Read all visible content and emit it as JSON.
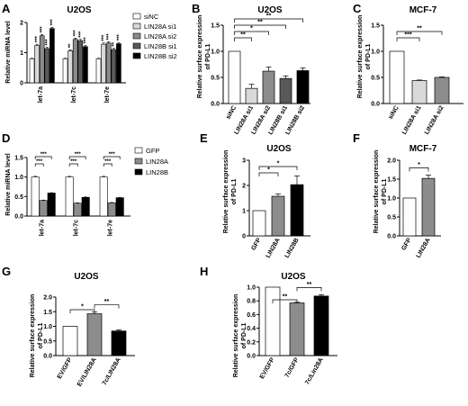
{
  "figure": {
    "panels": [
      {
        "letter": "A",
        "title": "U2OS",
        "ylabel": "Relative miRNA level",
        "legend": [
          {
            "label": "siNC",
            "color": "#ffffff"
          },
          {
            "label": "LIN28A si1",
            "color": "#d9d9d9"
          },
          {
            "label": "LIN28A si2",
            "color": "#8c8c8c"
          },
          {
            "label": "LIN28B si1",
            "color": "#595959"
          },
          {
            "label": "LIN28B si2",
            "color": "#000000"
          }
        ]
      },
      {
        "letter": "B",
        "title": "U2OS",
        "ylabel": "Relative surface expression",
        "ylabel2": "of PD-L1"
      },
      {
        "letter": "C",
        "title": "MCF-7",
        "ylabel": "Relative surface expression",
        "ylabel2": "of PD-L1"
      },
      {
        "letter": "D",
        "title": "",
        "ylabel": "Relative miRNA level",
        "legend": [
          {
            "label": "GFP",
            "color": "#ffffff"
          },
          {
            "label": "LIN28A",
            "color": "#8c8c8c"
          },
          {
            "label": "LIN28B",
            "color": "#000000"
          }
        ]
      },
      {
        "letter": "E",
        "title": "U2OS",
        "ylabel": "Relative surface expression",
        "ylabel2": "of PD-L1"
      },
      {
        "letter": "F",
        "title": "MCF-7",
        "ylabel": "Relative surface expression",
        "ylabel2": "of PD-L1"
      },
      {
        "letter": "G",
        "title": "U2OS",
        "ylabel": "Relative surface expression",
        "ylabel2": "of PD-L1"
      },
      {
        "letter": "H",
        "title": "U2OS",
        "ylabel": "Relative surface expression",
        "ylabel2": "of PD-L1"
      }
    ]
  },
  "chart_data": [
    {
      "panel": "A",
      "type": "bar",
      "title": "U2OS",
      "ylabel": "Relative miRNA level",
      "categories": [
        "let-7a",
        "let-7c",
        "let-7e"
      ],
      "ylim": [
        0,
        2.5
      ],
      "yticks": [
        "0",
        "1",
        "2"
      ],
      "series": [
        {
          "name": "siNC",
          "values": [
            1.0,
            1.0,
            1.0
          ],
          "errors": [
            0.02,
            0.02,
            0.02
          ],
          "color": "#ffffff"
        },
        {
          "name": "LIN28A si1",
          "values": [
            1.55,
            1.33,
            1.6
          ],
          "errors": [
            0.05,
            0.04,
            0.05
          ],
          "color": "#d9d9d9"
        },
        {
          "name": "LIN28A si2",
          "values": [
            1.95,
            1.8,
            1.65
          ],
          "errors": [
            0.05,
            0.05,
            0.05
          ],
          "color": "#8c8c8c"
        },
        {
          "name": "LIN28B si1",
          "values": [
            1.42,
            1.75,
            1.38
          ],
          "errors": [
            0.05,
            0.05,
            0.05
          ],
          "color": "#595959"
        },
        {
          "name": "LIN28B si2",
          "values": [
            2.25,
            1.5,
            1.62
          ],
          "errors": [
            0.05,
            0.05,
            0.05
          ],
          "color": "#000000"
        }
      ],
      "annotations": [
        [
          "***",
          "***",
          "***",
          "***"
        ],
        [
          "**",
          "***",
          "***",
          "***"
        ],
        [
          "***",
          "***",
          "**",
          "***"
        ]
      ]
    },
    {
      "panel": "B",
      "type": "bar",
      "title": "U2OS",
      "ylabel": "Relative surface expression of PD-L1",
      "categories": [
        "siNC",
        "LIN28A si1",
        "LIN28A si2",
        "LIN28B si1",
        "LIN28B si2"
      ],
      "values": [
        1.0,
        0.29,
        0.62,
        0.48,
        0.63
      ],
      "errors": [
        0.0,
        0.08,
        0.08,
        0.05,
        0.05
      ],
      "colors": [
        "#ffffff",
        "#d9d9d9",
        "#8c8c8c",
        "#595959",
        "#000000"
      ],
      "ylim": [
        0,
        1.5
      ],
      "yticks": [
        "0.0",
        "0.5",
        "1.0",
        "1.5"
      ],
      "significance": [
        {
          "pair": [
            0,
            1
          ],
          "label": "**"
        },
        {
          "pair": [
            0,
            2
          ],
          "label": "*"
        },
        {
          "pair": [
            0,
            3
          ],
          "label": "**"
        },
        {
          "pair": [
            0,
            4
          ],
          "label": "**"
        }
      ]
    },
    {
      "panel": "C",
      "type": "bar",
      "title": "MCF-7",
      "ylabel": "Relative surface expression of PD-L1",
      "categories": [
        "siNC",
        "LIN28A si1",
        "LIN28A si2"
      ],
      "values": [
        1.0,
        0.44,
        0.5
      ],
      "errors": [
        0.0,
        0.01,
        0.01
      ],
      "colors": [
        "#ffffff",
        "#d9d9d9",
        "#8c8c8c"
      ],
      "ylim": [
        0,
        1.5
      ],
      "yticks": [
        "0.0",
        "0.5",
        "1.0",
        "1.5"
      ],
      "significance": [
        {
          "pair": [
            0,
            1
          ],
          "label": "***"
        },
        {
          "pair": [
            0,
            2
          ],
          "label": "**"
        }
      ]
    },
    {
      "panel": "D",
      "type": "bar",
      "title": "",
      "ylabel": "Relative miRNA level",
      "categories": [
        "let-7a",
        "let-7c",
        "let-7e"
      ],
      "ylim": [
        0,
        1.5
      ],
      "yticks": [
        "0.0",
        "0.5",
        "1.0",
        "1.5"
      ],
      "series": [
        {
          "name": "GFP",
          "values": [
            1.0,
            1.0,
            1.0
          ],
          "errors": [
            0.02,
            0.02,
            0.02
          ],
          "color": "#ffffff"
        },
        {
          "name": "LIN28A",
          "values": [
            0.4,
            0.33,
            0.34
          ],
          "errors": [
            0.01,
            0.01,
            0.01
          ],
          "color": "#8c8c8c"
        },
        {
          "name": "LIN28B",
          "values": [
            0.59,
            0.48,
            0.47
          ],
          "errors": [
            0.01,
            0.01,
            0.01
          ],
          "color": "#000000"
        }
      ],
      "significance_label": "***"
    },
    {
      "panel": "E",
      "type": "bar",
      "title": "U2OS",
      "ylabel": "Relative surface expression of PD-L1",
      "categories": [
        "GFP",
        "LIN28A",
        "LIN28B"
      ],
      "values": [
        1.0,
        1.57,
        2.03
      ],
      "errors": [
        0.0,
        0.1,
        0.35
      ],
      "colors": [
        "#ffffff",
        "#8c8c8c",
        "#000000"
      ],
      "ylim": [
        0,
        3
      ],
      "yticks": [
        "0",
        "1",
        "2",
        "3"
      ],
      "significance": [
        {
          "pair": [
            0,
            1
          ],
          "label": "*"
        },
        {
          "pair": [
            0,
            2
          ],
          "label": "*"
        }
      ]
    },
    {
      "panel": "F",
      "type": "bar",
      "title": "MCF-7",
      "ylabel": "Relative surface expression of PD-L1",
      "categories": [
        "GFP",
        "LIN28A"
      ],
      "values": [
        1.0,
        1.52
      ],
      "errors": [
        0.0,
        0.09
      ],
      "colors": [
        "#ffffff",
        "#8c8c8c"
      ],
      "ylim": [
        0,
        2.0
      ],
      "yticks": [
        "0.0",
        "0.5",
        "1.0",
        "1.5",
        "2.0"
      ],
      "significance": [
        {
          "pair": [
            0,
            1
          ],
          "label": "*"
        }
      ]
    },
    {
      "panel": "G",
      "type": "bar",
      "title": "U2OS",
      "ylabel": "Relative surface expression of PD-L1",
      "categories": [
        "EV/GFP",
        "EV/LIN28A",
        "7c/LIN28A"
      ],
      "values": [
        1.0,
        1.43,
        0.84
      ],
      "errors": [
        0.0,
        0.06,
        0.04
      ],
      "colors": [
        "#ffffff",
        "#8c8c8c",
        "#000000"
      ],
      "ylim": [
        0,
        2.0
      ],
      "yticks": [
        "0.0",
        "0.5",
        "1.0",
        "1.5",
        "2.0"
      ],
      "significance": [
        {
          "pair": [
            0,
            1
          ],
          "label": "*"
        },
        {
          "pair": [
            1,
            2
          ],
          "label": "**"
        }
      ]
    },
    {
      "panel": "H",
      "type": "bar",
      "title": "U2OS",
      "ylabel": "Relative surface expression of PD-L1",
      "categories": [
        "EV/GFP",
        "7c/GFP",
        "7c/Lin28A"
      ],
      "values": [
        1.0,
        0.77,
        0.87
      ],
      "errors": [
        0.0,
        0.01,
        0.02
      ],
      "colors": [
        "#ffffff",
        "#8c8c8c",
        "#000000"
      ],
      "ylim": [
        0,
        1.0
      ],
      "yticks": [
        "0.0",
        "0.2",
        "0.4",
        "0.6",
        "0.8",
        "1.0"
      ],
      "significance": [
        {
          "pair": [
            0,
            1
          ],
          "label": "**"
        },
        {
          "pair": [
            1,
            2
          ],
          "label": "**"
        }
      ]
    }
  ]
}
